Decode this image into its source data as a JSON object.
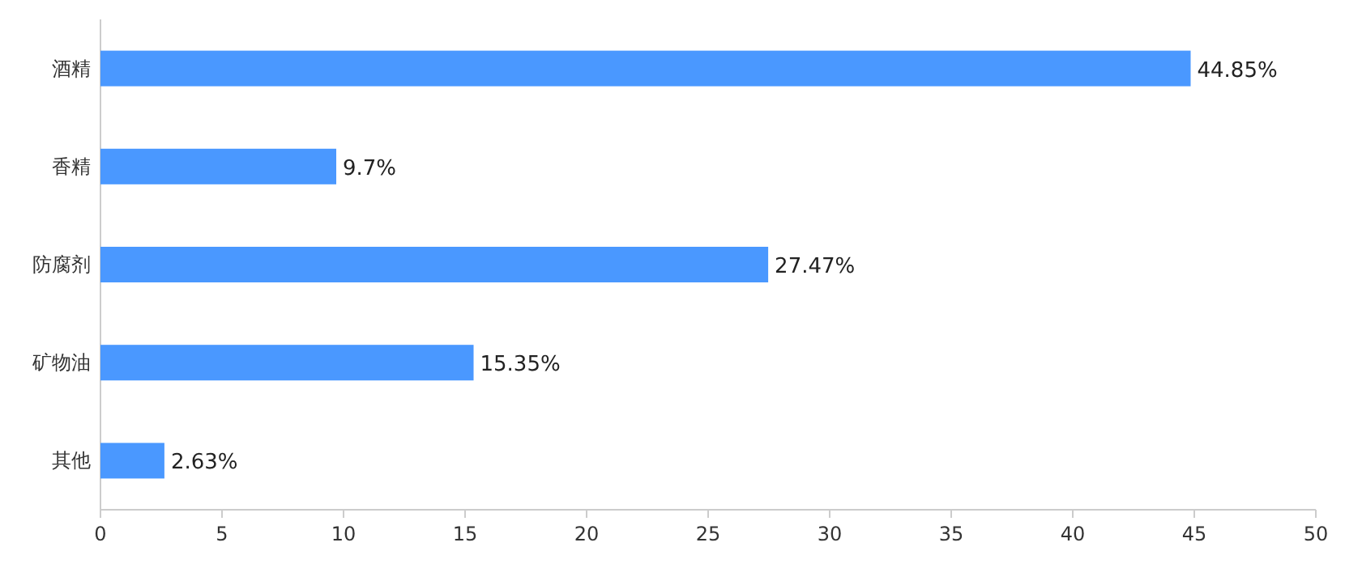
{
  "chart_data": {
    "type": "bar",
    "orientation": "horizontal",
    "categories": [
      "酒精",
      "香精",
      "防腐剂",
      "矿物油",
      "其他"
    ],
    "values": [
      44.85,
      9.7,
      27.47,
      15.35,
      2.63
    ],
    "value_labels": [
      "44.85%",
      "9.7%",
      "27.47%",
      "15.35%",
      "2.63%"
    ],
    "color": "#4a98ff",
    "xlim": [
      0,
      50
    ],
    "xticks": [
      0,
      5,
      10,
      15,
      20,
      25,
      30,
      35,
      40,
      45,
      50
    ]
  }
}
